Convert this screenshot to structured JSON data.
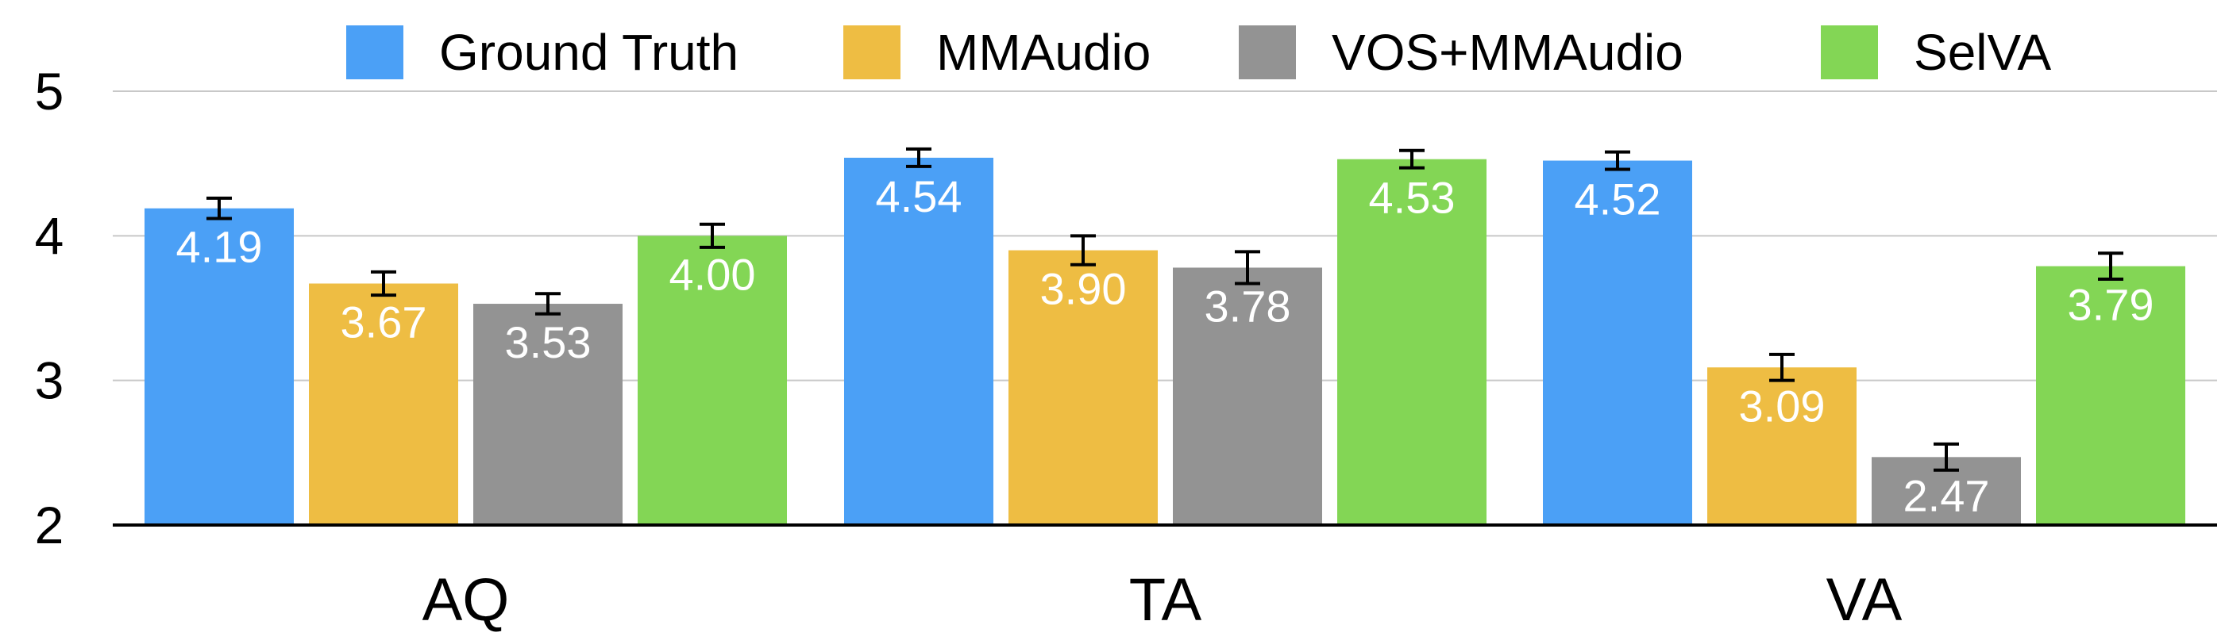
{
  "chart_data": {
    "type": "bar",
    "categories": [
      "AQ",
      "TA",
      "VA"
    ],
    "series": [
      {
        "name": "Ground Truth",
        "color": "#4ba0f6",
        "values": [
          4.19,
          4.54,
          4.52
        ],
        "errors": [
          0.07,
          0.06,
          0.06
        ]
      },
      {
        "name": "MMAudio",
        "color": "#eebd43",
        "values": [
          3.67,
          3.9,
          3.09
        ],
        "errors": [
          0.08,
          0.1,
          0.09
        ]
      },
      {
        "name": "VOS+MMAudio",
        "color": "#939393",
        "values": [
          3.53,
          3.78,
          2.47
        ],
        "errors": [
          0.07,
          0.11,
          0.09
        ]
      },
      {
        "name": "SelVA",
        "color": "#83d655",
        "values": [
          4.0,
          4.53,
          3.79
        ],
        "errors": [
          0.08,
          0.06,
          0.09
        ]
      }
    ],
    "value_labels": [
      [
        "4.19",
        "4.54",
        "4.52"
      ],
      [
        "3.67",
        "3.90",
        "3.09"
      ],
      [
        "3.53",
        "3.78",
        "2.47"
      ],
      [
        "4.00",
        "4.53",
        "3.79"
      ]
    ],
    "yticks": [
      "2",
      "3",
      "4",
      "5"
    ],
    "ylim": [
      2,
      5
    ],
    "grid": true,
    "legend_position": "top",
    "title": "",
    "xlabel": "",
    "ylabel": ""
  }
}
